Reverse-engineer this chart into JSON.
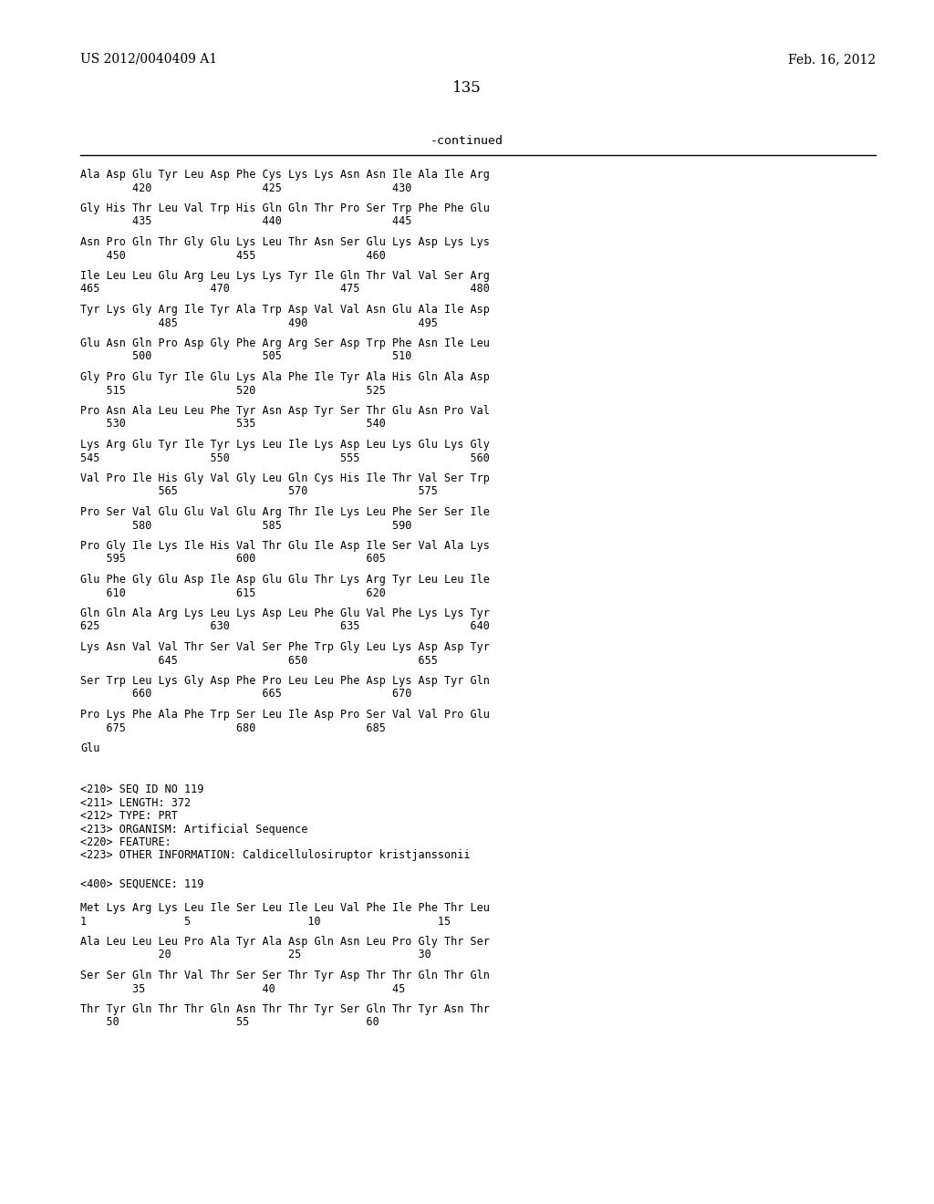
{
  "header_left": "US 2012/0040409 A1",
  "header_right": "Feb. 16, 2012",
  "page_number": "135",
  "continued_label": "-continued",
  "background_color": "#ffffff",
  "text_color": "#000000",
  "seq_blocks_1": [
    [
      "Ala Asp Glu Tyr Leu Asp Phe Cys Lys Lys Asn Asn Ile Ala Ile Arg",
      "        420                 425                 430"
    ],
    [
      "Gly His Thr Leu Val Trp His Gln Gln Thr Pro Ser Trp Phe Phe Glu",
      "        435                 440                 445"
    ],
    [
      "Asn Pro Gln Thr Gly Glu Lys Leu Thr Asn Ser Glu Lys Asp Lys Lys",
      "    450                 455                 460"
    ],
    [
      "Ile Leu Leu Glu Arg Leu Lys Lys Tyr Ile Gln Thr Val Val Ser Arg",
      "465                 470                 475                 480"
    ],
    [
      "Tyr Lys Gly Arg Ile Tyr Ala Trp Asp Val Val Asn Glu Ala Ile Asp",
      "            485                 490                 495"
    ],
    [
      "Glu Asn Gln Pro Asp Gly Phe Arg Arg Ser Asp Trp Phe Asn Ile Leu",
      "        500                 505                 510"
    ],
    [
      "Gly Pro Glu Tyr Ile Glu Lys Ala Phe Ile Tyr Ala His Gln Ala Asp",
      "    515                 520                 525"
    ],
    [
      "Pro Asn Ala Leu Leu Phe Tyr Asn Asp Tyr Ser Thr Glu Asn Pro Val",
      "    530                 535                 540"
    ],
    [
      "Lys Arg Glu Tyr Ile Tyr Lys Leu Ile Lys Asp Leu Lys Glu Lys Gly",
      "545                 550                 555                 560"
    ],
    [
      "Val Pro Ile His Gly Val Gly Leu Gln Cys His Ile Thr Val Ser Trp",
      "            565                 570                 575"
    ],
    [
      "Pro Ser Val Glu Glu Val Glu Arg Thr Ile Lys Leu Phe Ser Ser Ile",
      "        580                 585                 590"
    ],
    [
      "Pro Gly Ile Lys Ile His Val Thr Glu Ile Asp Ile Ser Val Ala Lys",
      "    595                 600                 605"
    ],
    [
      "Glu Phe Gly Glu Asp Ile Asp Glu Glu Thr Lys Arg Tyr Leu Leu Ile",
      "    610                 615                 620"
    ],
    [
      "Gln Gln Ala Arg Lys Leu Lys Asp Leu Phe Glu Val Phe Lys Lys Tyr",
      "625                 630                 635                 640"
    ],
    [
      "Lys Asn Val Val Thr Ser Val Ser Phe Trp Gly Leu Lys Asp Asp Tyr",
      "            645                 650                 655"
    ],
    [
      "Ser Trp Leu Lys Gly Asp Phe Pro Leu Leu Phe Asp Lys Asp Tyr Gln",
      "        660                 665                 670"
    ],
    [
      "Pro Lys Phe Ala Phe Trp Ser Leu Ile Asp Pro Ser Val Val Pro Glu",
      "    675                 680                 685"
    ]
  ],
  "single_line": "Glu",
  "metadata_lines": [
    "<210> SEQ ID NO 119",
    "<211> LENGTH: 372",
    "<212> TYPE: PRT",
    "<213> ORGANISM: Artificial Sequence",
    "<220> FEATURE:",
    "<223> OTHER INFORMATION: Caldicellulosiruptor kristjanssonii"
  ],
  "seq400_label": "<400> SEQUENCE: 119",
  "seq_blocks_2": [
    [
      "Met Lys Arg Lys Leu Ile Ser Leu Ile Leu Val Phe Ile Phe Thr Leu",
      "1               5                  10                  15"
    ],
    [
      "Ala Leu Leu Leu Pro Ala Tyr Ala Asp Gln Asn Leu Pro Gly Thr Ser",
      "            20                  25                  30"
    ],
    [
      "Ser Ser Gln Thr Val Thr Ser Ser Thr Tyr Asp Thr Thr Gln Thr Gln",
      "        35                  40                  45"
    ],
    [
      "Thr Tyr Gln Thr Thr Gln Asn Thr Thr Tyr Ser Gln Thr Tyr Asn Thr",
      "    50                  55                  60"
    ]
  ]
}
